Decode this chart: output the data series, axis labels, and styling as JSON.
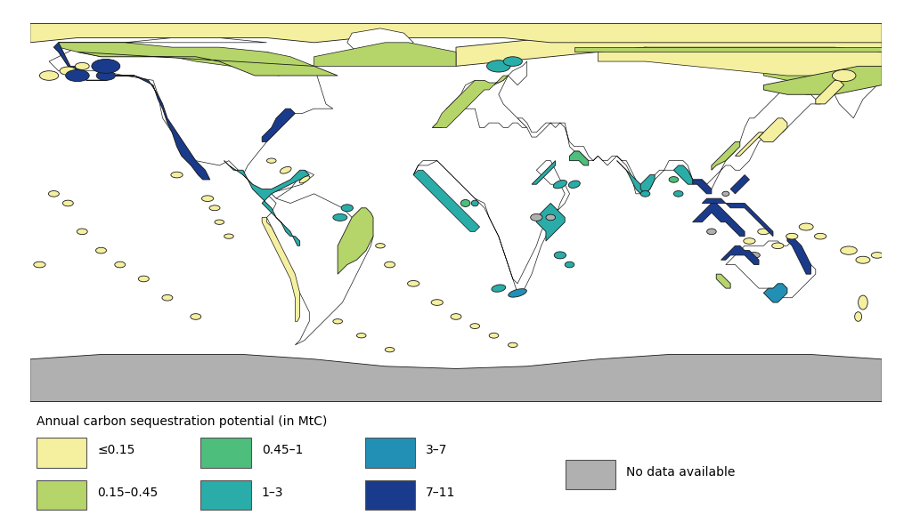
{
  "legend_title": "Annual carbon sequestration potential (in MtC)",
  "legend_items": [
    {
      "label": "≤0.15",
      "color": "#f5f0a0"
    },
    {
      "label": "0.15–0.45",
      "color": "#b5d46a"
    },
    {
      "label": "0.45–1",
      "color": "#4dbe7c"
    },
    {
      "label": "1–3",
      "color": "#2aada8"
    },
    {
      "label": "3–7",
      "color": "#2290b5"
    },
    {
      "label": "7–11",
      "color": "#1a3b8c"
    },
    {
      "label": "No data available",
      "color": "#b0b0b0"
    }
  ],
  "background_color": "#ffffff",
  "land_color": "#ffffff",
  "border_color": "#1a1a1a",
  "border_linewidth": 0.5,
  "figsize": [
    10.24,
    5.79
  ],
  "dpi": 100,
  "legend_fontsize": 10,
  "legend_title_fontsize": 10
}
